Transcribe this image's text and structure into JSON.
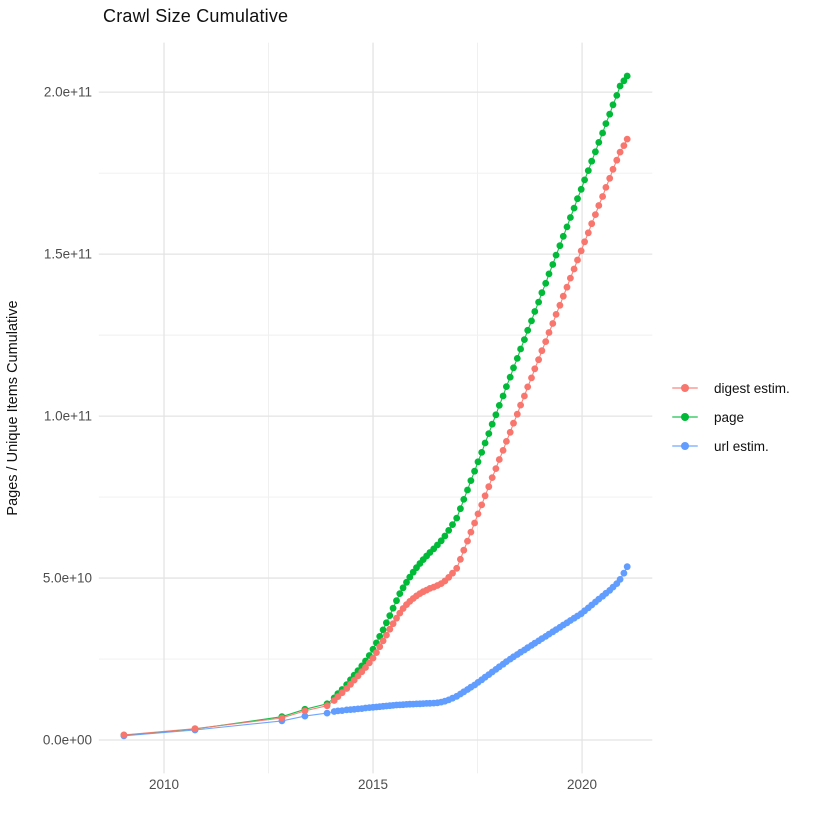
{
  "chart_data": {
    "type": "scatter",
    "title": "Crawl Size Cumulative",
    "xlabel": "",
    "ylabel": "Pages / Unique Items Cumulative",
    "x_ticks": [
      2010,
      2015,
      2020
    ],
    "x_tick_labels": [
      "2010",
      "2015",
      "2020"
    ],
    "x_minor_ticks": [
      2012.5,
      2017.5
    ],
    "x_range": [
      2008.44,
      2021.68
    ],
    "y_unit_note": "values in billions (1e9)",
    "y_ticks": [
      0,
      50,
      100,
      150,
      200
    ],
    "y_tick_labels": [
      "0.0e+00",
      "5.0e+10",
      "1.0e+11",
      "1.5e+11",
      "2.0e+11"
    ],
    "y_minor_ticks": [
      25,
      75,
      125,
      175
    ],
    "y_range": [
      -10.3,
      215.3
    ],
    "grid": "on",
    "legend_position": "right",
    "grid_major_color": "#E4E4E4",
    "grid_minor_color": "#EFEFEF",
    "tick_text_color": "#4D4D4D",
    "legend": [
      {
        "name": "digest estim.",
        "color": "#F8766D"
      },
      {
        "name": "page",
        "color": "#00BA38"
      },
      {
        "name": "url estim.",
        "color": "#619CFF"
      }
    ],
    "draw_order": [
      1,
      2,
      0
    ],
    "series": [
      {
        "name": "digest estim.",
        "color": "#F8766D",
        "unit": 1000000000.0,
        "points": [
          [
            2009.04,
            1.6
          ],
          [
            2010.74,
            3.5
          ],
          [
            2012.82,
            6.8
          ],
          [
            2013.37,
            9.0
          ],
          [
            2013.9,
            10.6
          ],
          [
            2014.07,
            12.2
          ],
          [
            2014.16,
            13.4
          ],
          [
            2014.26,
            14.6
          ],
          [
            2014.37,
            15.9
          ],
          [
            2014.46,
            17.2
          ],
          [
            2014.55,
            18.5
          ],
          [
            2014.64,
            19.8
          ],
          [
            2014.73,
            21.1
          ],
          [
            2014.82,
            22.4
          ],
          [
            2014.91,
            23.8
          ],
          [
            2015.0,
            25.3
          ],
          [
            2015.08,
            27.0
          ],
          [
            2015.16,
            28.8
          ],
          [
            2015.24,
            30.6
          ],
          [
            2015.32,
            32.4
          ],
          [
            2015.4,
            34.2
          ],
          [
            2015.48,
            35.9
          ],
          [
            2015.56,
            37.6
          ],
          [
            2015.64,
            39.2
          ],
          [
            2015.72,
            40.6
          ],
          [
            2015.8,
            41.8
          ],
          [
            2015.88,
            42.8
          ],
          [
            2015.96,
            43.7
          ],
          [
            2016.04,
            44.5
          ],
          [
            2016.12,
            45.2
          ],
          [
            2016.2,
            45.8
          ],
          [
            2016.28,
            46.3
          ],
          [
            2016.36,
            46.8
          ],
          [
            2016.45,
            47.2
          ],
          [
            2016.54,
            47.7
          ],
          [
            2016.63,
            48.3
          ],
          [
            2016.72,
            49.1
          ],
          [
            2016.81,
            50.2
          ],
          [
            2016.9,
            51.5
          ],
          [
            2017.0,
            53.0
          ],
          [
            2017.09,
            55.8
          ],
          [
            2017.17,
            58.6
          ],
          [
            2017.26,
            61.4
          ],
          [
            2017.34,
            64.2
          ],
          [
            2017.43,
            67.0
          ],
          [
            2017.51,
            69.8
          ],
          [
            2017.6,
            72.6
          ],
          [
            2017.68,
            75.4
          ],
          [
            2017.77,
            78.2
          ],
          [
            2017.85,
            81.0
          ],
          [
            2017.94,
            83.8
          ],
          [
            2018.02,
            86.6
          ],
          [
            2018.11,
            89.4
          ],
          [
            2018.19,
            92.2
          ],
          [
            2018.28,
            95.0
          ],
          [
            2018.36,
            97.8
          ],
          [
            2018.45,
            100.6
          ],
          [
            2018.53,
            103.4
          ],
          [
            2018.62,
            106.2
          ],
          [
            2018.7,
            109.0
          ],
          [
            2018.79,
            111.8
          ],
          [
            2018.87,
            114.6
          ],
          [
            2018.96,
            117.4
          ],
          [
            2019.04,
            120.2
          ],
          [
            2019.13,
            123.0
          ],
          [
            2019.21,
            125.8
          ],
          [
            2019.3,
            128.6
          ],
          [
            2019.38,
            131.4
          ],
          [
            2019.47,
            134.2
          ],
          [
            2019.55,
            137.0
          ],
          [
            2019.64,
            139.8
          ],
          [
            2019.72,
            142.6
          ],
          [
            2019.81,
            145.4
          ],
          [
            2019.89,
            148.2
          ],
          [
            2019.98,
            151.0
          ],
          [
            2020.06,
            153.8
          ],
          [
            2020.15,
            156.6
          ],
          [
            2020.23,
            159.4
          ],
          [
            2020.32,
            162.2
          ],
          [
            2020.4,
            165.0
          ],
          [
            2020.49,
            167.8
          ],
          [
            2020.57,
            170.6
          ],
          [
            2020.66,
            173.4
          ],
          [
            2020.74,
            176.2
          ],
          [
            2020.83,
            179.0
          ],
          [
            2020.91,
            181.5
          ],
          [
            2021.0,
            183.5
          ],
          [
            2021.08,
            185.5
          ]
        ]
      },
      {
        "name": "page",
        "color": "#00BA38",
        "unit": 1000000000.0,
        "points": [
          [
            2009.04,
            1.5
          ],
          [
            2010.74,
            3.4
          ],
          [
            2012.82,
            7.2
          ],
          [
            2013.37,
            9.5
          ],
          [
            2013.9,
            11.2
          ],
          [
            2014.07,
            13.0
          ],
          [
            2014.16,
            14.3
          ],
          [
            2014.26,
            15.6
          ],
          [
            2014.37,
            17.1
          ],
          [
            2014.46,
            18.6
          ],
          [
            2014.55,
            20.0
          ],
          [
            2014.64,
            21.4
          ],
          [
            2014.73,
            22.9
          ],
          [
            2014.82,
            24.4
          ],
          [
            2014.91,
            26.1
          ],
          [
            2015.0,
            28.0
          ],
          [
            2015.08,
            30.0
          ],
          [
            2015.16,
            32.0
          ],
          [
            2015.24,
            34.0
          ],
          [
            2015.32,
            36.2
          ],
          [
            2015.4,
            38.4
          ],
          [
            2015.48,
            40.7
          ],
          [
            2015.56,
            43.0
          ],
          [
            2015.64,
            45.2
          ],
          [
            2015.72,
            47.0
          ],
          [
            2015.8,
            48.7
          ],
          [
            2015.88,
            50.3
          ],
          [
            2015.96,
            51.8
          ],
          [
            2016.04,
            53.2
          ],
          [
            2016.12,
            54.5
          ],
          [
            2016.2,
            55.7
          ],
          [
            2016.28,
            56.8
          ],
          [
            2016.36,
            57.9
          ],
          [
            2016.45,
            59.0
          ],
          [
            2016.54,
            60.2
          ],
          [
            2016.63,
            61.5
          ],
          [
            2016.72,
            63.0
          ],
          [
            2016.81,
            64.7
          ],
          [
            2016.9,
            66.5
          ],
          [
            2017.0,
            68.5
          ],
          [
            2017.09,
            71.4
          ],
          [
            2017.17,
            74.3
          ],
          [
            2017.26,
            77.2
          ],
          [
            2017.34,
            80.1
          ],
          [
            2017.43,
            83.0
          ],
          [
            2017.51,
            85.9
          ],
          [
            2017.6,
            88.8
          ],
          [
            2017.68,
            91.7
          ],
          [
            2017.77,
            94.6
          ],
          [
            2017.85,
            97.5
          ],
          [
            2017.94,
            100.4
          ],
          [
            2018.02,
            103.3
          ],
          [
            2018.11,
            106.2
          ],
          [
            2018.19,
            109.1
          ],
          [
            2018.28,
            112.0
          ],
          [
            2018.36,
            114.9
          ],
          [
            2018.45,
            117.8
          ],
          [
            2018.53,
            120.7
          ],
          [
            2018.62,
            123.6
          ],
          [
            2018.7,
            126.5
          ],
          [
            2018.79,
            129.4
          ],
          [
            2018.87,
            132.3
          ],
          [
            2018.96,
            135.2
          ],
          [
            2019.04,
            138.1
          ],
          [
            2019.13,
            141.0
          ],
          [
            2019.21,
            143.9
          ],
          [
            2019.3,
            146.8
          ],
          [
            2019.38,
            149.7
          ],
          [
            2019.47,
            152.6
          ],
          [
            2019.55,
            155.5
          ],
          [
            2019.64,
            158.4
          ],
          [
            2019.72,
            161.3
          ],
          [
            2019.81,
            164.2
          ],
          [
            2019.89,
            167.1
          ],
          [
            2019.98,
            170.0
          ],
          [
            2020.06,
            172.9
          ],
          [
            2020.15,
            175.8
          ],
          [
            2020.23,
            178.7
          ],
          [
            2020.32,
            181.6
          ],
          [
            2020.4,
            184.5
          ],
          [
            2020.49,
            187.4
          ],
          [
            2020.57,
            190.3
          ],
          [
            2020.66,
            193.2
          ],
          [
            2020.74,
            196.1
          ],
          [
            2020.83,
            199.0
          ],
          [
            2020.91,
            201.9
          ],
          [
            2021.0,
            203.5
          ],
          [
            2021.08,
            205.0
          ]
        ]
      },
      {
        "name": "url estim.",
        "color": "#619CFF",
        "unit": 1000000000.0,
        "points": [
          [
            2009.04,
            1.3
          ],
          [
            2010.74,
            3.1
          ],
          [
            2012.82,
            5.9
          ],
          [
            2013.37,
            7.4
          ],
          [
            2013.9,
            8.3
          ],
          [
            2014.07,
            8.8
          ],
          [
            2014.16,
            9.0
          ],
          [
            2014.26,
            9.1
          ],
          [
            2014.37,
            9.3
          ],
          [
            2014.46,
            9.4
          ],
          [
            2014.55,
            9.5
          ],
          [
            2014.64,
            9.6
          ],
          [
            2014.73,
            9.7
          ],
          [
            2014.82,
            9.9
          ],
          [
            2014.91,
            10.0
          ],
          [
            2015.0,
            10.1
          ],
          [
            2015.08,
            10.2
          ],
          [
            2015.16,
            10.3
          ],
          [
            2015.24,
            10.4
          ],
          [
            2015.32,
            10.5
          ],
          [
            2015.4,
            10.6
          ],
          [
            2015.48,
            10.7
          ],
          [
            2015.56,
            10.8
          ],
          [
            2015.64,
            10.85
          ],
          [
            2015.72,
            10.9
          ],
          [
            2015.8,
            11.0
          ],
          [
            2015.88,
            11.05
          ],
          [
            2015.96,
            11.1
          ],
          [
            2016.04,
            11.15
          ],
          [
            2016.12,
            11.2
          ],
          [
            2016.2,
            11.25
          ],
          [
            2016.28,
            11.3
          ],
          [
            2016.36,
            11.35
          ],
          [
            2016.45,
            11.4
          ],
          [
            2016.54,
            11.5
          ],
          [
            2016.63,
            11.7
          ],
          [
            2016.72,
            12.0
          ],
          [
            2016.81,
            12.4
          ],
          [
            2016.9,
            12.9
          ],
          [
            2017.0,
            13.5
          ],
          [
            2017.09,
            14.2
          ],
          [
            2017.17,
            14.9
          ],
          [
            2017.26,
            15.6
          ],
          [
            2017.34,
            16.3
          ],
          [
            2017.43,
            17.0
          ],
          [
            2017.51,
            17.8
          ],
          [
            2017.6,
            18.6
          ],
          [
            2017.68,
            19.4
          ],
          [
            2017.77,
            20.2
          ],
          [
            2017.85,
            21.0
          ],
          [
            2017.94,
            21.8
          ],
          [
            2018.02,
            22.6
          ],
          [
            2018.11,
            23.4
          ],
          [
            2018.19,
            24.2
          ],
          [
            2018.28,
            25.0
          ],
          [
            2018.36,
            25.7
          ],
          [
            2018.45,
            26.4
          ],
          [
            2018.53,
            27.1
          ],
          [
            2018.62,
            27.8
          ],
          [
            2018.7,
            28.5
          ],
          [
            2018.79,
            29.2
          ],
          [
            2018.87,
            29.9
          ],
          [
            2018.96,
            30.6
          ],
          [
            2019.04,
            31.3
          ],
          [
            2019.13,
            32.0
          ],
          [
            2019.21,
            32.7
          ],
          [
            2019.3,
            33.4
          ],
          [
            2019.38,
            34.1
          ],
          [
            2019.47,
            34.8
          ],
          [
            2019.55,
            35.5
          ],
          [
            2019.64,
            36.2
          ],
          [
            2019.72,
            36.9
          ],
          [
            2019.81,
            37.6
          ],
          [
            2019.89,
            38.3
          ],
          [
            2019.98,
            39.0
          ],
          [
            2020.06,
            39.9
          ],
          [
            2020.15,
            40.8
          ],
          [
            2020.23,
            41.7
          ],
          [
            2020.32,
            42.6
          ],
          [
            2020.4,
            43.5
          ],
          [
            2020.49,
            44.4
          ],
          [
            2020.57,
            45.3
          ],
          [
            2020.66,
            46.2
          ],
          [
            2020.74,
            47.2
          ],
          [
            2020.83,
            48.3
          ],
          [
            2020.91,
            49.6
          ],
          [
            2021.0,
            51.5
          ],
          [
            2021.08,
            53.5
          ]
        ]
      }
    ]
  }
}
